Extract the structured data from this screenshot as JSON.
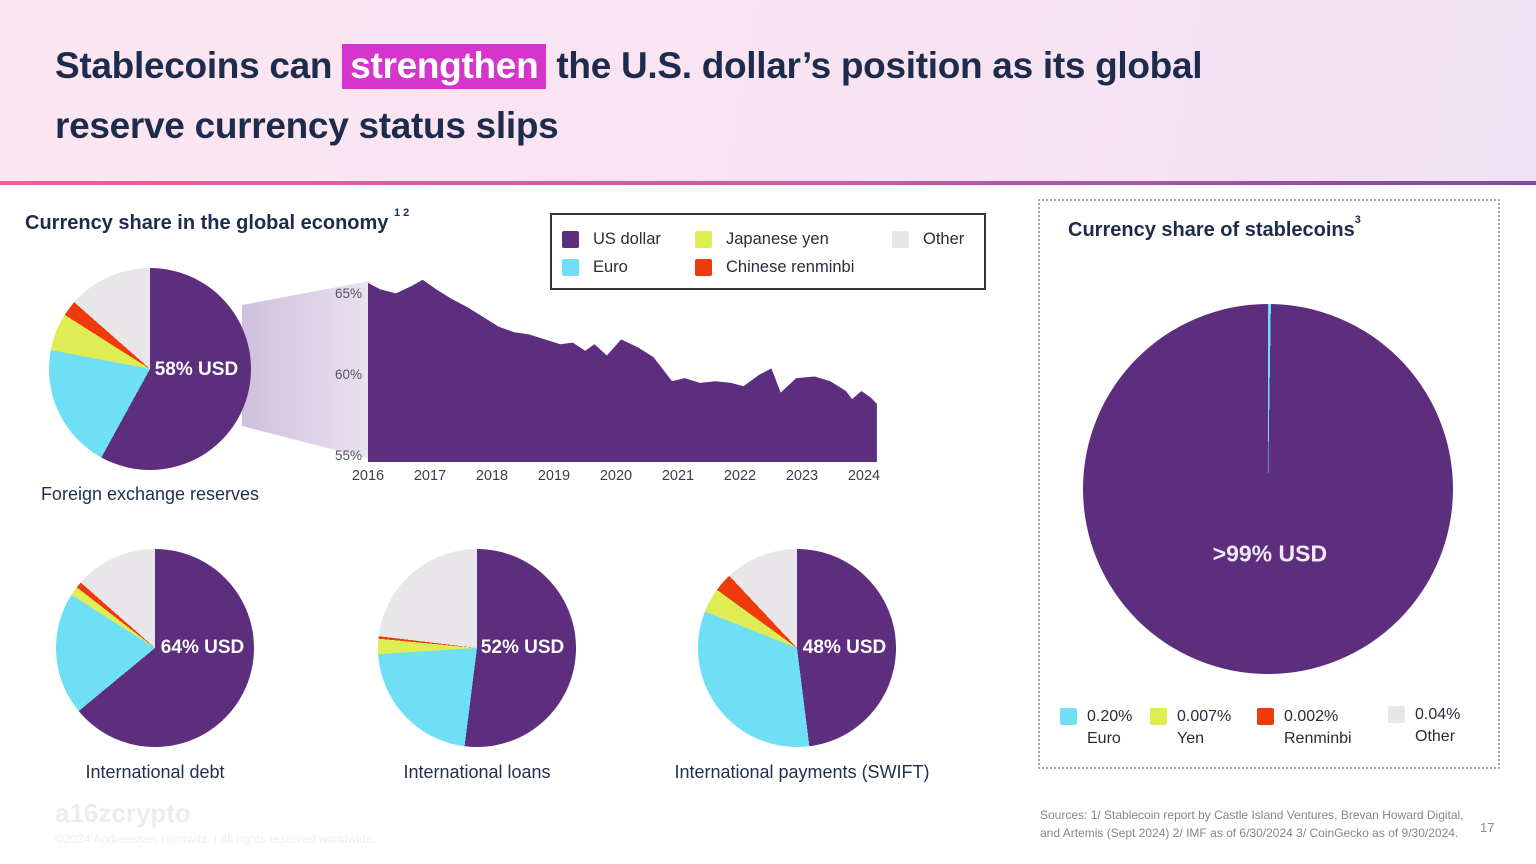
{
  "header": {
    "title_pre": "Stablecoins can ",
    "title_highlight": "strengthen",
    "title_post": " the U.S. dollar’s position as its global",
    "title_line2": "reserve currency status slips"
  },
  "colors": {
    "usd": "#5C2E7D",
    "euro": "#6FDFF5",
    "yen": "#DFED55",
    "renminbi": "#EF3B0B",
    "other": "#E8E6E8",
    "area": "#5C2E7D",
    "highlight": "#D535CB",
    "title_navy": "#1D2B4D"
  },
  "left_section": {
    "title": "Currency share in the global economy",
    "title_superscript": "1 2",
    "legend": [
      {
        "key": "usd",
        "label": "US dollar"
      },
      {
        "key": "euro",
        "label": "Euro"
      },
      {
        "key": "yen",
        "label": "Japanese yen"
      },
      {
        "key": "renminbi",
        "label": "Chinese renminbi"
      },
      {
        "key": "other",
        "label": "Other"
      }
    ]
  },
  "chart_data": [
    {
      "id": "fx_reserves",
      "type": "pie",
      "title": "Foreign exchange reserves",
      "center_label": "58% USD",
      "slices": [
        {
          "name": "US dollar",
          "key": "usd",
          "value": 58
        },
        {
          "name": "Euro",
          "key": "euro",
          "value": 20
        },
        {
          "name": "Japanese yen",
          "key": "yen",
          "value": 6
        },
        {
          "name": "Chinese renminbi",
          "key": "renminbi",
          "value": 2.5
        },
        {
          "name": "Other",
          "key": "other",
          "value": 13.5
        }
      ]
    },
    {
      "id": "usd_share_trend",
      "type": "area",
      "title": "US dollar share of foreign exchange reserves over time",
      "xlabels": [
        "2016",
        "2017",
        "2018",
        "2019",
        "2020",
        "2021",
        "2022",
        "2023",
        "2024"
      ],
      "ylabels": [
        {
          "value": 65,
          "label": "65%"
        },
        {
          "value": 60,
          "label": "60%"
        },
        {
          "value": 55,
          "label": "55%"
        }
      ],
      "xlim": [
        2016,
        2024.25
      ],
      "ylim": [
        54.6,
        66.5
      ],
      "grid": false,
      "series": [
        [
          2016.0,
          65.7
        ],
        [
          2016.2,
          65.3
        ],
        [
          2016.45,
          65.05
        ],
        [
          2016.7,
          65.5
        ],
        [
          2016.88,
          65.9
        ],
        [
          2017.1,
          65.3
        ],
        [
          2017.35,
          64.7
        ],
        [
          2017.6,
          64.2
        ],
        [
          2017.85,
          63.6
        ],
        [
          2018.1,
          63.0
        ],
        [
          2018.35,
          62.65
        ],
        [
          2018.6,
          62.5
        ],
        [
          2018.85,
          62.2
        ],
        [
          2019.1,
          61.9
        ],
        [
          2019.3,
          62.0
        ],
        [
          2019.5,
          61.5
        ],
        [
          2019.65,
          61.9
        ],
        [
          2019.85,
          61.2
        ],
        [
          2020.08,
          62.2
        ],
        [
          2020.35,
          61.7
        ],
        [
          2020.6,
          61.1
        ],
        [
          2020.9,
          59.6
        ],
        [
          2021.1,
          59.8
        ],
        [
          2021.35,
          59.5
        ],
        [
          2021.6,
          59.6
        ],
        [
          2021.85,
          59.5
        ],
        [
          2022.05,
          59.3
        ],
        [
          2022.3,
          60.0
        ],
        [
          2022.5,
          60.4
        ],
        [
          2022.65,
          58.9
        ],
        [
          2022.9,
          59.8
        ],
        [
          2023.2,
          59.9
        ],
        [
          2023.45,
          59.6
        ],
        [
          2023.7,
          59.0
        ],
        [
          2023.8,
          58.5
        ],
        [
          2023.95,
          59.0
        ],
        [
          2024.1,
          58.6
        ],
        [
          2024.2,
          58.2
        ]
      ]
    },
    {
      "id": "intl_debt",
      "type": "pie",
      "title": "International debt",
      "center_label": "64% USD",
      "slices": [
        {
          "name": "US dollar",
          "key": "usd",
          "value": 64
        },
        {
          "name": "Euro",
          "key": "euro",
          "value": 20
        },
        {
          "name": "Japanese yen",
          "key": "yen",
          "value": 1.5
        },
        {
          "name": "Chinese renminbi",
          "key": "renminbi",
          "value": 1
        },
        {
          "name": "Other",
          "key": "other",
          "value": 13.5
        }
      ]
    },
    {
      "id": "intl_loans",
      "type": "pie",
      "title": "International loans",
      "center_label": "52% USD",
      "slices": [
        {
          "name": "US dollar",
          "key": "usd",
          "value": 52
        },
        {
          "name": "Euro",
          "key": "euro",
          "value": 22
        },
        {
          "name": "Japanese yen",
          "key": "yen",
          "value": 2.5
        },
        {
          "name": "Chinese renminbi",
          "key": "renminbi",
          "value": 0.4
        },
        {
          "name": "Other",
          "key": "other",
          "value": 23.1
        }
      ]
    },
    {
      "id": "intl_payments_swift",
      "type": "pie",
      "title": "International payments (SWIFT)",
      "center_label": "48% USD",
      "slices": [
        {
          "name": "US dollar",
          "key": "usd",
          "value": 48
        },
        {
          "name": "Euro",
          "key": "euro",
          "value": 33
        },
        {
          "name": "Japanese yen",
          "key": "yen",
          "value": 4
        },
        {
          "name": "Chinese renminbi",
          "key": "renminbi",
          "value": 3
        },
        {
          "name": "Other",
          "key": "other",
          "value": 12
        }
      ]
    },
    {
      "id": "stablecoins",
      "type": "pie",
      "title": "Currency share of stablecoins",
      "center_label": ">99% USD",
      "slices": [
        {
          "name": "US dollar",
          "key": "usd",
          "value": 99.75
        },
        {
          "name": "Euro",
          "key": "euro",
          "value": 0.2
        },
        {
          "name": "Yen",
          "key": "yen",
          "value": 0.007
        },
        {
          "name": "Renminbi",
          "key": "renminbi",
          "value": 0.002
        },
        {
          "name": "Other",
          "key": "other",
          "value": 0.04
        }
      ],
      "display_slices": [
        {
          "key": "euro",
          "value": 0.25
        },
        {
          "key": "usd",
          "value": 99.75
        }
      ]
    }
  ],
  "stablecoin_panel": {
    "title": "Currency share of stablecoins",
    "title_superscript": "3",
    "legend": [
      {
        "key": "euro",
        "pct": "0.20%",
        "label": "Euro"
      },
      {
        "key": "yen",
        "pct": "0.007%",
        "label": "Yen"
      },
      {
        "key": "renminbi",
        "pct": "0.002%",
        "label": "Renminbi"
      },
      {
        "key": "other",
        "pct": "0.04%",
        "label": "Other"
      }
    ]
  },
  "sources": {
    "line1": "Sources: 1/ Stablecoin report by Castle Island Ventures, Brevan Howard Digital,",
    "line2": "and Artemis (Sept 2024) 2/ IMF as of 6/30/2024 3/ CoinGecko as of 9/30/2024."
  },
  "page_number": "17",
  "footer": {
    "logo": "a16zcrypto",
    "copyright": "©2024 Andreessen Horowitz.  |  All rights reserved worldwide."
  }
}
